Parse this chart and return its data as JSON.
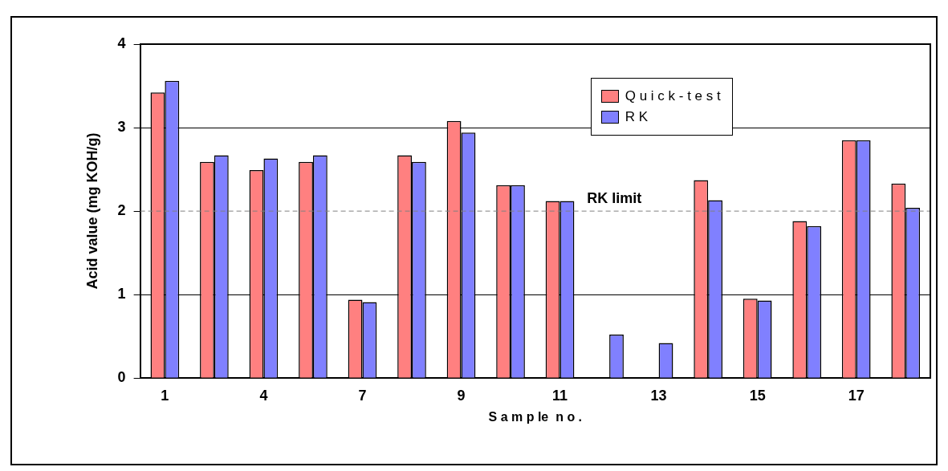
{
  "chart_data": {
    "type": "bar",
    "xlabel": "S a m p le  n o .",
    "ylabel": "Acid value (mg KOH/g)",
    "categories": [
      "1",
      null,
      "4",
      null,
      "7",
      null,
      "9",
      null,
      "11",
      null,
      "13",
      null,
      "15",
      null,
      "17",
      null
    ],
    "series": [
      {
        "name": "Q u i c k - t e s t",
        "color": "#ff8080",
        "values": [
          3.42,
          2.59,
          2.49,
          2.59,
          0.94,
          2.67,
          3.08,
          2.31,
          2.12,
          null,
          null,
          2.37,
          0.95,
          1.88,
          2.85,
          2.33
        ]
      },
      {
        "name": "R K",
        "color": "#8080ff",
        "values": [
          3.56,
          2.67,
          2.63,
          2.67,
          0.91,
          2.59,
          2.94,
          2.31,
          2.12,
          0.52,
          0.42,
          2.13,
          0.93,
          1.82,
          2.85,
          2.04
        ]
      }
    ],
    "ylim": [
      0,
      4
    ],
    "yticks": [
      0,
      1,
      2,
      3,
      4
    ],
    "grid": "y",
    "legend": "top right",
    "ref_lines": [
      {
        "axis": "y",
        "value": 2,
        "label": "RK limit",
        "color": "#808080",
        "line_style": "dashed"
      }
    ]
  }
}
